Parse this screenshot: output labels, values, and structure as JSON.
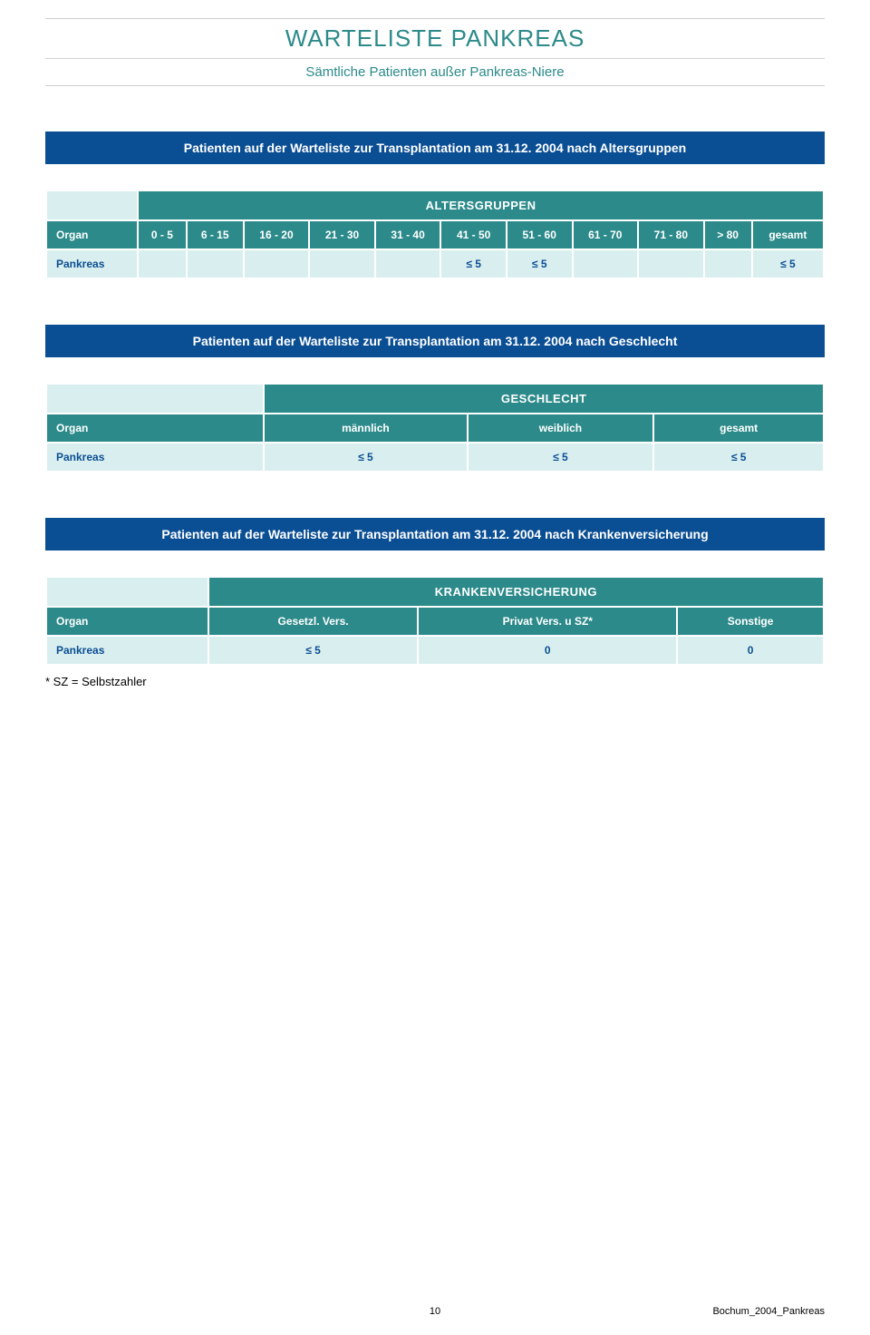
{
  "header": {
    "title": "WARTELISTE  PANKREAS",
    "subtitle": "Sämtliche Patienten außer Pankreas-Niere"
  },
  "colors": {
    "teal": "#2d8a8a",
    "teal_light": "#d9eeee",
    "blue_banner": "#0a4e94",
    "text_blue": "#0a4e94"
  },
  "sections": [
    {
      "banner": "Patienten auf der Warteliste zur Transplantation am 31.12. 2004 nach Altersgruppen",
      "group_header": "ALTERSGRUPPEN",
      "first_col_label": "Organ",
      "columns": [
        "0 - 5",
        "6 - 15",
        "16 - 20",
        "21 - 30",
        "31 - 40",
        "41 - 50",
        "51 - 60",
        "61 - 70",
        "71 - 80",
        "> 80",
        "gesamt"
      ],
      "rows": [
        {
          "label": "Pankreas",
          "values": [
            "",
            "",
            "",
            "",
            "",
            "≤ 5",
            "≤ 5",
            "",
            "",
            "",
            "≤ 5"
          ]
        }
      ]
    },
    {
      "banner": "Patienten auf der Warteliste zur Transplantation am 31.12. 2004 nach Geschlecht",
      "group_header": "GESCHLECHT",
      "first_col_label": "Organ",
      "columns": [
        "männlich",
        "weiblich",
        "gesamt"
      ],
      "rows": [
        {
          "label": "Pankreas",
          "values": [
            "≤ 5",
            "≤ 5",
            "≤ 5"
          ]
        }
      ]
    },
    {
      "banner": "Patienten auf der Warteliste zur Transplantation am 31.12. 2004 nach Krankenversicherung",
      "group_header": "KRANKENVERSICHERUNG",
      "first_col_label": "Organ",
      "columns": [
        "Gesetzl. Vers.",
        "Privat Vers. u SZ*",
        "Sonstige"
      ],
      "rows": [
        {
          "label": "Pankreas",
          "values": [
            "≤ 5",
            "0",
            "0"
          ]
        }
      ],
      "footnote": "* SZ = Selbstzahler"
    }
  ],
  "footer": {
    "page_number": "10",
    "doc_id": "Bochum_2004_Pankreas"
  }
}
